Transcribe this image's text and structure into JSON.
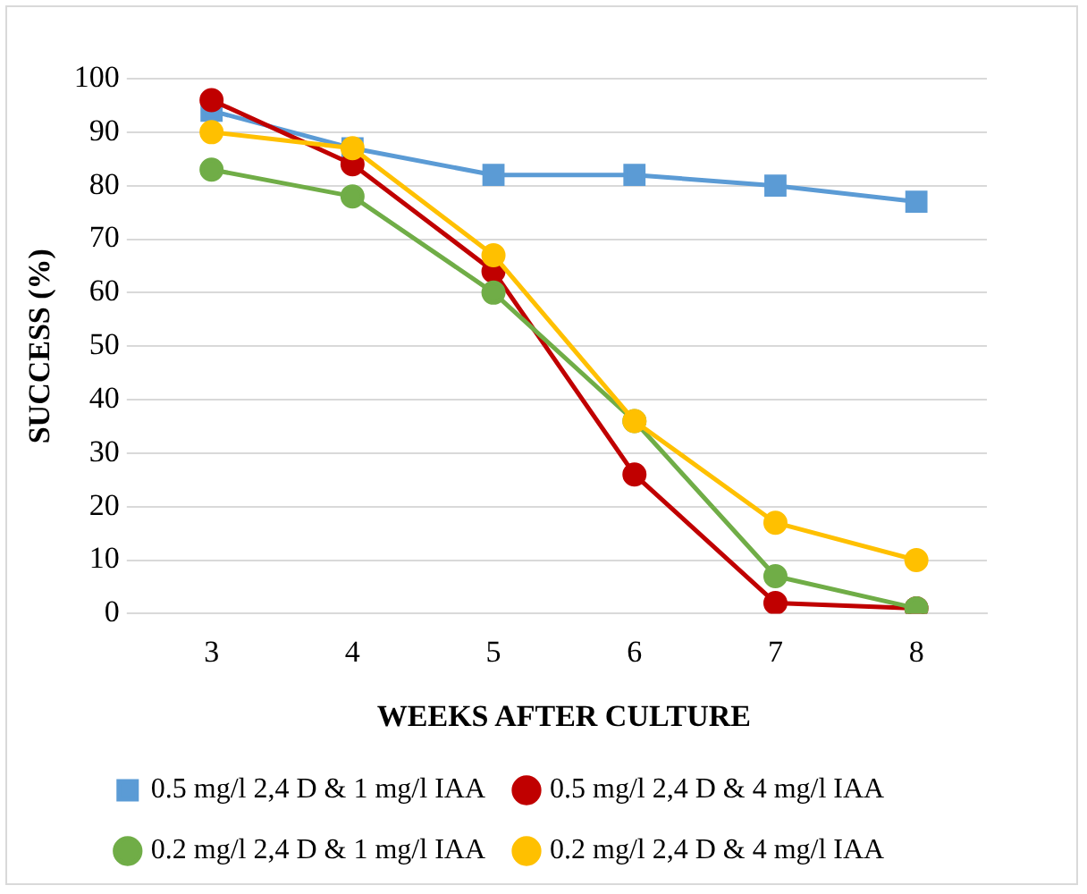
{
  "chart_data": {
    "type": "line",
    "xlabel": "WEEKS AFTER CULTURE",
    "ylabel": "SUCCESS (%)",
    "categories": [
      "3",
      "4",
      "5",
      "6",
      "7",
      "8"
    ],
    "series": [
      {
        "name": "0.5 mg/l 2,4 D & 1 mg/l IAA",
        "color": "#5b9bd5",
        "marker": "square",
        "values": [
          94,
          87,
          82,
          82,
          80,
          77
        ]
      },
      {
        "name": "0.5 mg/l 2,4 D & 4 mg/l IAA",
        "color": "#c00000",
        "marker": "circle",
        "values": [
          96,
          84,
          64,
          26,
          2,
          1
        ]
      },
      {
        "name": "0.2 mg/l 2,4 D & 1 mg/l IAA",
        "color": "#70ad47",
        "marker": "circle",
        "values": [
          83,
          78,
          60,
          36,
          7,
          1
        ]
      },
      {
        "name": "0.2 mg/l 2,4 D & 4 mg/l IAA",
        "color": "#ffc000",
        "marker": "circle",
        "values": [
          90,
          87,
          67,
          36,
          17,
          10
        ]
      }
    ],
    "ylim": [
      0,
      100
    ],
    "yticks": [
      0,
      10,
      20,
      30,
      40,
      50,
      60,
      70,
      80,
      90,
      100
    ],
    "grid": "y",
    "legend": "bottom",
    "line_style": "solid"
  }
}
